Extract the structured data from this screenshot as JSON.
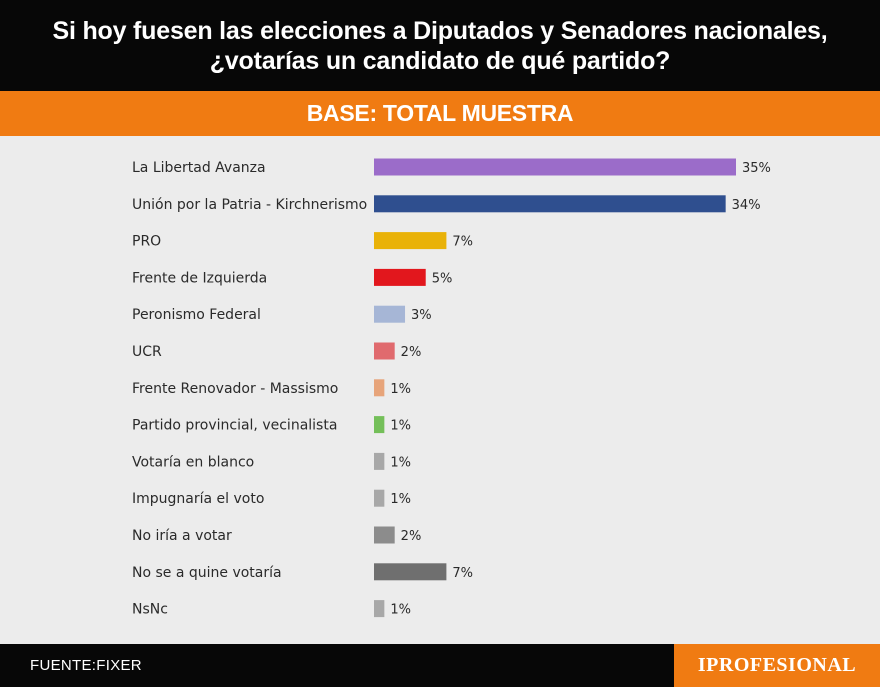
{
  "header": {
    "title": "Si hoy fuesen las elecciones a Diputados y Senadores nacionales, ¿votarías un candidato de qué partido?",
    "subtitle": "BASE: TOTAL MUESTRA"
  },
  "footer": {
    "source": "FUENTE:FIXER",
    "brand": "IPROFESIONAL"
  },
  "colors": {
    "header_bg": "#070707",
    "accent": "#f07b12",
    "plot_bg": "#ececec"
  },
  "chart_data": {
    "type": "bar",
    "orientation": "horizontal",
    "unit": "%",
    "xlim": [
      0,
      35
    ],
    "grid": false,
    "categories": [
      "La Libertad Avanza",
      "Unión por la Patria - Kirchnerismo",
      "PRO",
      "Frente de Izquierda",
      "Peronismo Federal",
      "UCR",
      "Frente Renovador - Massismo",
      "Partido provincial, vecinalista",
      "Votaría en blanco",
      "Impugnaría el voto",
      "No iría a votar",
      "No se a quine votaría",
      "NsNc"
    ],
    "values": [
      35,
      34,
      7,
      5,
      3,
      2,
      1,
      1,
      1,
      1,
      2,
      7,
      1
    ],
    "value_labels": [
      "35%",
      "34%",
      "7%",
      "5%",
      "3%",
      "2%",
      "1%",
      "1%",
      "1%",
      "1%",
      "2%",
      "7%",
      "1%"
    ],
    "colors": [
      "#9b6cc9",
      "#2f4f8f",
      "#e9b208",
      "#e2171d",
      "#a6b6d6",
      "#e06a6e",
      "#e7a47a",
      "#74bf59",
      "#a8a8a8",
      "#a8a8a8",
      "#8c8c8c",
      "#6f6f6f",
      "#a8a8a8"
    ]
  }
}
